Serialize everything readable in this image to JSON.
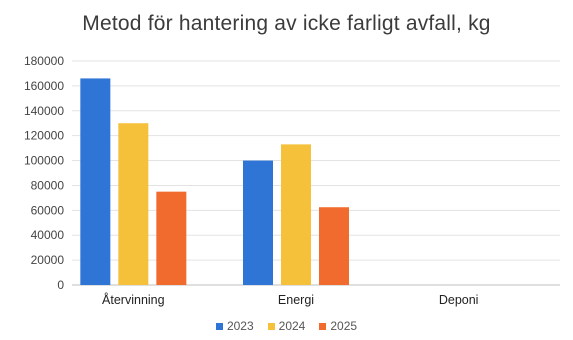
{
  "chart_data": {
    "type": "bar",
    "title": "Metod för hantering av icke farligt avfall, kg",
    "categories": [
      "Återvinning",
      "Energi",
      "Deponi"
    ],
    "series": [
      {
        "name": "2023",
        "color": "#2e75d6",
        "values": [
          166000,
          100000,
          0
        ]
      },
      {
        "name": "2024",
        "color": "#f5c03a",
        "values": [
          130000,
          113000,
          0
        ]
      },
      {
        "name": "2025",
        "color": "#f26b2e",
        "values": [
          75000,
          62500,
          0
        ]
      }
    ],
    "ylim": [
      0,
      180000
    ],
    "yticks": [
      "0",
      "20000",
      "40000",
      "60000",
      "80000",
      "100000",
      "120000",
      "140000",
      "160000",
      "180000"
    ],
    "grid": true,
    "legend_position": "bottom"
  }
}
